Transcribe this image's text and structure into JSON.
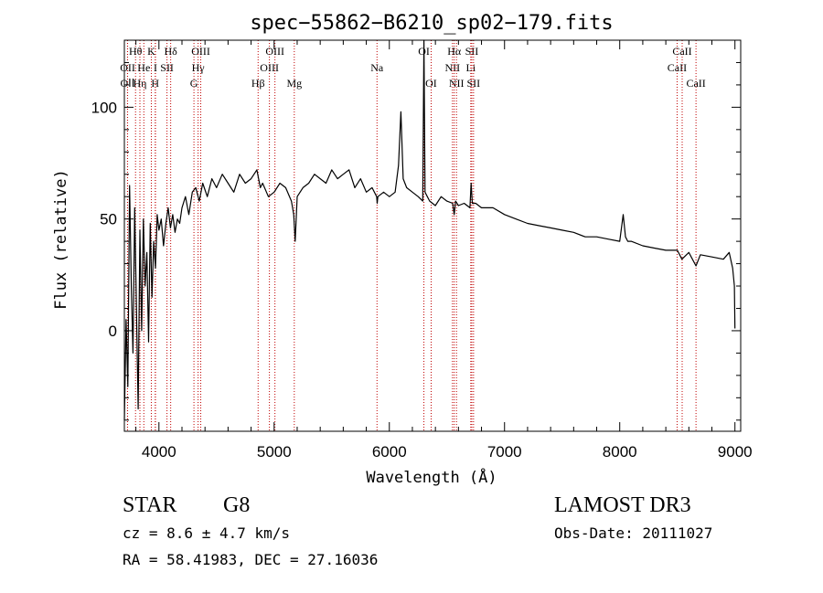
{
  "chart_data": {
    "type": "line",
    "title": "spec−55862−B6210_sp02−179.fits",
    "xlabel": "Wavelength (Å)",
    "ylabel": "Flux (relative)",
    "xlim": [
      3700,
      9050
    ],
    "ylim": [
      -45,
      130
    ],
    "xticks": [
      4000,
      5000,
      6000,
      7000,
      8000,
      9000
    ],
    "yticks": [
      0,
      50,
      100
    ],
    "series": [
      {
        "name": "flux",
        "x": [
          3700,
          3715,
          3730,
          3745,
          3760,
          3775,
          3790,
          3805,
          3820,
          3835,
          3850,
          3865,
          3880,
          3895,
          3910,
          3925,
          3940,
          3955,
          3970,
          3985,
          4000,
          4020,
          4040,
          4060,
          4080,
          4100,
          4120,
          4140,
          4160,
          4180,
          4200,
          4230,
          4260,
          4290,
          4320,
          4350,
          4380,
          4420,
          4460,
          4500,
          4550,
          4600,
          4650,
          4700,
          4750,
          4800,
          4850,
          4880,
          4900,
          4950,
          5000,
          5050,
          5100,
          5150,
          5170,
          5183,
          5200,
          5250,
          5300,
          5350,
          5400,
          5450,
          5500,
          5550,
          5600,
          5650,
          5700,
          5750,
          5800,
          5850,
          5890,
          5895,
          5900,
          5950,
          6000,
          6050,
          6080,
          6100,
          6120,
          6150,
          6200,
          6250,
          6290,
          6300,
          6310,
          6330,
          6350,
          6400,
          6450,
          6500,
          6550,
          6563,
          6575,
          6600,
          6650,
          6700,
          6710,
          6720,
          6750,
          6800,
          6900,
          7000,
          7100,
          7200,
          7300,
          7400,
          7500,
          7600,
          7700,
          7800,
          7900,
          8000,
          8030,
          8050,
          8070,
          8100,
          8200,
          8300,
          8400,
          8500,
          8540,
          8600,
          8662,
          8700,
          8800,
          8900,
          8950,
          8980,
          8995,
          9000
        ],
        "values": [
          -40,
          5,
          -25,
          65,
          20,
          -10,
          55,
          10,
          -35,
          45,
          0,
          50,
          20,
          35,
          -5,
          48,
          15,
          40,
          28,
          52,
          45,
          50,
          38,
          48,
          55,
          46,
          52,
          44,
          50,
          48,
          55,
          60,
          52,
          62,
          64,
          58,
          66,
          60,
          68,
          64,
          70,
          66,
          62,
          70,
          66,
          68,
          72,
          64,
          66,
          60,
          62,
          66,
          64,
          58,
          52,
          40,
          60,
          64,
          66,
          70,
          68,
          66,
          72,
          68,
          70,
          72,
          64,
          68,
          62,
          64,
          60,
          57,
          60,
          62,
          60,
          62,
          74,
          98,
          68,
          64,
          62,
          60,
          58,
          130,
          62,
          60,
          58,
          56,
          60,
          58,
          57,
          52,
          58,
          56,
          57,
          55,
          66,
          57,
          57,
          55,
          55,
          52,
          50,
          48,
          47,
          46,
          45,
          44,
          42,
          42,
          41,
          40,
          52,
          42,
          40,
          40,
          38,
          37,
          36,
          36,
          32,
          35,
          29,
          34,
          33,
          32,
          35,
          28,
          20,
          1
        ],
        "color": "#000000"
      }
    ],
    "spectral_lines": [
      {
        "label": "OⅠⅠ",
        "wavelength": 3727,
        "row": 3
      },
      {
        "label": "OII",
        "wavelength": 3728,
        "row": 2
      },
      {
        "label": "Hθ",
        "wavelength": 3797,
        "row": 1
      },
      {
        "label": "Hη",
        "wavelength": 3835,
        "row": 3
      },
      {
        "label": "He",
        "wavelength": 3869,
        "row": 2
      },
      {
        "label": "K",
        "wavelength": 3934,
        "row": 1
      },
      {
        "label": "H",
        "wavelength": 3968,
        "row": 3
      },
      {
        "label": "I",
        "wavelength": 3970,
        "row": 2
      },
      {
        "label": "SII",
        "wavelength": 4070,
        "row": 2
      },
      {
        "label": "Hδ",
        "wavelength": 4102,
        "row": 1
      },
      {
        "label": "G",
        "wavelength": 4304,
        "row": 3
      },
      {
        "label": "Hγ",
        "wavelength": 4340,
        "row": 2
      },
      {
        "label": "OIII",
        "wavelength": 4363,
        "row": 1
      },
      {
        "label": "Hβ",
        "wavelength": 4861,
        "row": 3
      },
      {
        "label": "OIII",
        "wavelength": 4959,
        "row": 2
      },
      {
        "label": "OIII",
        "wavelength": 5007,
        "row": 1
      },
      {
        "label": "Mg",
        "wavelength": 5175,
        "row": 3
      },
      {
        "label": "Na",
        "wavelength": 5893,
        "row": 2
      },
      {
        "label": "OI",
        "wavelength": 6300,
        "row": 1
      },
      {
        "label": "OI",
        "wavelength": 6363,
        "row": 3
      },
      {
        "label": "NII",
        "wavelength": 6548,
        "row": 2
      },
      {
        "label": "NII",
        "wavelength": 6583,
        "row": 3
      },
      {
        "label": "Hα",
        "wavelength": 6563,
        "row": 1
      },
      {
        "label": "Li",
        "wavelength": 6707,
        "row": 2
      },
      {
        "label": "SII",
        "wavelength": 6716,
        "row": 1
      },
      {
        "label": "SII",
        "wavelength": 6731,
        "row": 3
      },
      {
        "label": "CaII",
        "wavelength": 8498,
        "row": 2
      },
      {
        "label": "CaII",
        "wavelength": 8542,
        "row": 1
      },
      {
        "label": "CaII",
        "wavelength": 8662,
        "row": 3
      }
    ],
    "line_color": "#c00000"
  },
  "info": {
    "object_class": "STAR",
    "subclass": "G8",
    "survey": "LAMOST DR3",
    "redshift_line": "cz = 8.6 ± 4.7 km/s",
    "obs_date": "Obs-Date: 20111027",
    "coords": "RA =  58.41983, DEC =  27.16036"
  }
}
